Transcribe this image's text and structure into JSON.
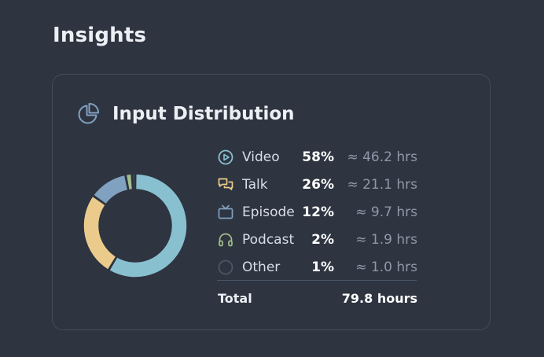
{
  "page": {
    "title": "Insights"
  },
  "card": {
    "title": "Input Distribution",
    "icon": "pie-chart-icon"
  },
  "chart_data": {
    "type": "pie",
    "donut": true,
    "categories": [
      "Video",
      "Talk",
      "Episode",
      "Podcast",
      "Other"
    ],
    "values": [
      58,
      26,
      12,
      2,
      1
    ],
    "colors": [
      "#88c0d0",
      "#ebcb8b",
      "#81a1c1",
      "#a3be8c",
      "#4c566a"
    ]
  },
  "legend": [
    {
      "label": "Video",
      "pct": "58%",
      "hrs": "≈ 46.2 hrs",
      "icon": "play-circle-icon",
      "color": "#88c0d0"
    },
    {
      "label": "Talk",
      "pct": "26%",
      "hrs": "≈ 21.1 hrs",
      "icon": "chat-bubbles-icon",
      "color": "#ebcb8b"
    },
    {
      "label": "Episode",
      "pct": "12%",
      "hrs": "≈ 9.7 hrs",
      "icon": "tv-icon",
      "color": "#81a1c1"
    },
    {
      "label": "Podcast",
      "pct": "2%",
      "hrs": "≈ 1.9 hrs",
      "icon": "headphones-icon",
      "color": "#a3be8c"
    },
    {
      "label": "Other",
      "pct": "1%",
      "hrs": "≈ 1.0 hrs",
      "icon": "circle-icon",
      "color": "#4c566a"
    }
  ],
  "total": {
    "label": "Total",
    "value": "79.8 hours"
  }
}
